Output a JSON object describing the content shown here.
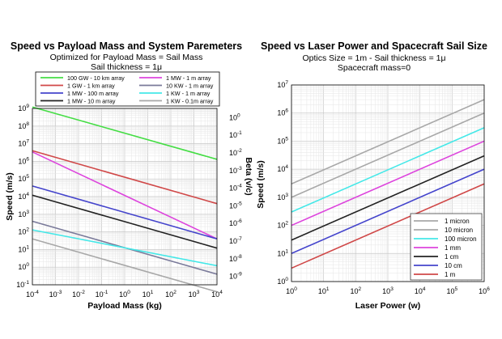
{
  "chart_data": [
    {
      "type": "line",
      "title": "Speed vs Payload Mass and System Paremeters",
      "subtitle_lines": [
        "Optimized for Payload Mass = Sail Mass",
        "Sail thickness = 1μ"
      ],
      "xlabel": "Payload Mass (kg)",
      "ylabel": "Speed (m/s)",
      "y2label": "Beta (v/c)",
      "x_scale": "log",
      "y_scale": "log",
      "xlim": [
        0.0001,
        10000
      ],
      "ylim": [
        0.1,
        1000000000
      ],
      "y2lim": [
        3.33e-10,
        3.33
      ],
      "grid": true,
      "legend_position": "top",
      "x_ticks": [
        {
          "v": 0.0001,
          "base": "10",
          "exp": "-4"
        },
        {
          "v": 0.001,
          "base": "10",
          "exp": "-3"
        },
        {
          "v": 0.01,
          "base": "10",
          "exp": "-2"
        },
        {
          "v": 0.1,
          "base": "10",
          "exp": "-1"
        },
        {
          "v": 1,
          "base": "10",
          "exp": "0"
        },
        {
          "v": 10,
          "base": "10",
          "exp": "1"
        },
        {
          "v": 100,
          "base": "10",
          "exp": "2"
        },
        {
          "v": 1000,
          "base": "10",
          "exp": "3"
        },
        {
          "v": 10000,
          "base": "10",
          "exp": "4"
        }
      ],
      "y_ticks": [
        {
          "v": 0.1,
          "base": "10",
          "exp": "-1"
        },
        {
          "v": 1,
          "base": "10",
          "exp": "0"
        },
        {
          "v": 10,
          "base": "10",
          "exp": "1"
        },
        {
          "v": 100,
          "base": "10",
          "exp": "2"
        },
        {
          "v": 1000,
          "base": "10",
          "exp": "3"
        },
        {
          "v": 10000,
          "base": "10",
          "exp": "4"
        },
        {
          "v": 100000,
          "base": "10",
          "exp": "5"
        },
        {
          "v": 1000000,
          "base": "10",
          "exp": "6"
        },
        {
          "v": 10000000,
          "base": "10",
          "exp": "7"
        },
        {
          "v": 100000000,
          "base": "10",
          "exp": "8"
        },
        {
          "v": 1000000000,
          "base": "10",
          "exp": "9"
        }
      ],
      "y2_ticks": [
        {
          "v": 1,
          "base": "10",
          "exp": "0"
        },
        {
          "v": 0.1,
          "base": "10",
          "exp": "-1"
        },
        {
          "v": 0.01,
          "base": "10",
          "exp": "-2"
        },
        {
          "v": 0.001,
          "base": "10",
          "exp": "-3"
        },
        {
          "v": 0.0001,
          "base": "10",
          "exp": "-4"
        },
        {
          "v": 1e-05,
          "base": "10",
          "exp": "-5"
        },
        {
          "v": 1e-06,
          "base": "10",
          "exp": "-6"
        },
        {
          "v": 1e-07,
          "base": "10",
          "exp": "-7"
        },
        {
          "v": 1e-08,
          "base": "10",
          "exp": "-8"
        },
        {
          "v": 1e-09,
          "base": "10",
          "exp": "-9"
        }
      ],
      "series": [
        {
          "name": "100 GW - 10 km array",
          "color": "#44dd44",
          "x": [
            0.0001,
            10000
          ],
          "y": [
            1200000000,
            1300000
          ]
        },
        {
          "name": "1 MW - 1 m array",
          "color": "#dd44dd",
          "x": [
            0.0001,
            10000
          ],
          "y": [
            3400000,
            40
          ]
        },
        {
          "name": "1 GW - 1 km array",
          "color": "#d04848",
          "x": [
            0.0001,
            10000
          ],
          "y": [
            4000000,
            4000
          ]
        },
        {
          "name": "10 KW - 1 m array",
          "color": "#7a7a9a",
          "x": [
            0.0001,
            10000
          ],
          "y": [
            400,
            0.4
          ]
        },
        {
          "name": "1 MW - 100 m array",
          "color": "#4444cc",
          "x": [
            0.0001,
            10000
          ],
          "y": [
            40000,
            40
          ]
        },
        {
          "name": "1 KW - 1 m array",
          "color": "#44e8e8",
          "x": [
            0.0001,
            10000
          ],
          "y": [
            130,
            1.2
          ]
        },
        {
          "name": "1 MW - 10 m array",
          "color": "#222222",
          "x": [
            0.0001,
            10000
          ],
          "y": [
            12000,
            12
          ]
        },
        {
          "name": "1 KW - 0.1m array",
          "color": "#a8a8a8",
          "x": [
            0.0001,
            10000
          ],
          "y": [
            40,
            0.04
          ]
        }
      ]
    },
    {
      "type": "line",
      "title": "Speed vs Laser Power and Spacecraft Sail Size",
      "subtitle_lines": [
        "Optics Size = 1m - Sail thickness = 1μ",
        "Spacecraft mass=0"
      ],
      "xlabel": "Laser Power (w)",
      "ylabel": "Speed (m/s)",
      "x_scale": "log",
      "y_scale": "log",
      "xlim": [
        1,
        1000000
      ],
      "ylim": [
        1,
        10000000
      ],
      "grid": true,
      "legend_position": "bottom-right",
      "x_ticks": [
        {
          "v": 1,
          "base": "10",
          "exp": "0"
        },
        {
          "v": 10,
          "base": "10",
          "exp": "1"
        },
        {
          "v": 100,
          "base": "10",
          "exp": "2"
        },
        {
          "v": 1000,
          "base": "10",
          "exp": "3"
        },
        {
          "v": 10000,
          "base": "10",
          "exp": "4"
        },
        {
          "v": 100000,
          "base": "10",
          "exp": "5"
        },
        {
          "v": 1000000,
          "base": "10",
          "exp": "6"
        }
      ],
      "y_ticks": [
        {
          "v": 1,
          "base": "10",
          "exp": "0"
        },
        {
          "v": 10,
          "base": "10",
          "exp": "1"
        },
        {
          "v": 100,
          "base": "10",
          "exp": "2"
        },
        {
          "v": 1000,
          "base": "10",
          "exp": "3"
        },
        {
          "v": 10000,
          "base": "10",
          "exp": "4"
        },
        {
          "v": 100000,
          "base": "10",
          "exp": "5"
        },
        {
          "v": 1000000,
          "base": "10",
          "exp": "6"
        },
        {
          "v": 10000000,
          "base": "10",
          "exp": "7"
        }
      ],
      "series": [
        {
          "name": "1 micron",
          "color": "#a8a8a8",
          "x": [
            1,
            1000000
          ],
          "y": [
            3000,
            3000000
          ]
        },
        {
          "name": "10 micron",
          "color": "#a8a8a8",
          "x": [
            1,
            1000000
          ],
          "y": [
            1000,
            1000000
          ]
        },
        {
          "name": "100 micron",
          "color": "#44e8e8",
          "x": [
            1,
            1000000
          ],
          "y": [
            300,
            300000
          ]
        },
        {
          "name": "1 mm",
          "color": "#dd44dd",
          "x": [
            1,
            1000000
          ],
          "y": [
            100,
            100000
          ]
        },
        {
          "name": "1 cm",
          "color": "#222222",
          "x": [
            1,
            1000000
          ],
          "y": [
            30,
            30000
          ]
        },
        {
          "name": "10 cm",
          "color": "#4444cc",
          "x": [
            1,
            1000000
          ],
          "y": [
            10,
            10000
          ]
        },
        {
          "name": "1 m",
          "color": "#d04848",
          "x": [
            1,
            1000000
          ],
          "y": [
            3,
            3000
          ]
        }
      ]
    }
  ]
}
